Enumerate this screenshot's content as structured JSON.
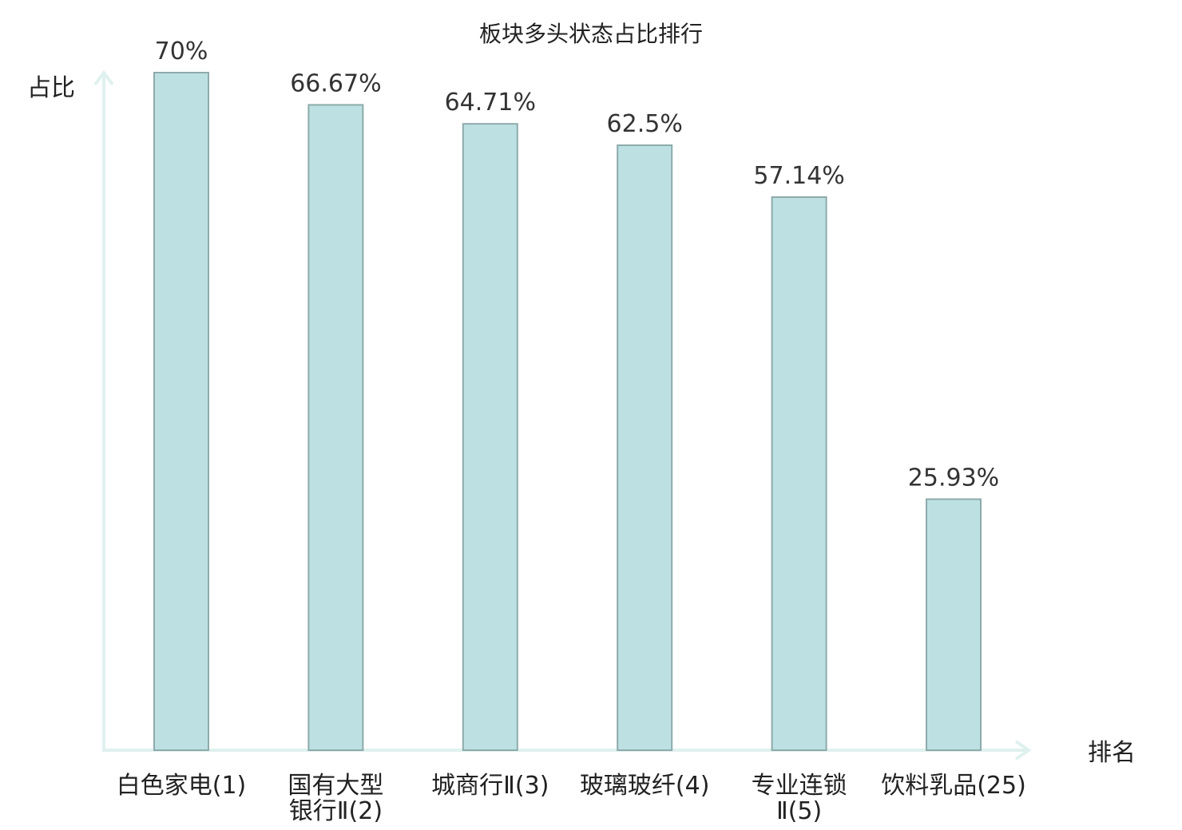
{
  "chart_data": {
    "type": "bar",
    "title": "板块多头状态占比排行",
    "ylabel": "占比",
    "xlabel": "排名",
    "ylim": [
      0,
      70
    ],
    "grid": false,
    "categories": [
      [
        "白色家电(1)"
      ],
      [
        "国有大型",
        "银行Ⅱ(2)"
      ],
      [
        "城商行Ⅱ(3)"
      ],
      [
        "玻璃玻纤(4)"
      ],
      [
        "专业连锁",
        "Ⅱ(5)"
      ],
      [
        "饮料乳品(25)"
      ]
    ],
    "values": [
      70,
      66.67,
      64.71,
      62.5,
      57.14,
      25.93
    ],
    "value_labels": [
      "70%",
      "66.67%",
      "64.71%",
      "62.5%",
      "57.14%",
      "25.93%"
    ],
    "highlight_index": 5,
    "colors": {
      "bar_fill": "#bde1e3",
      "bar_stroke": "#8eaaab",
      "axis": "#dff1ee",
      "highlight_text": "#e02020",
      "text": "#222222"
    }
  }
}
